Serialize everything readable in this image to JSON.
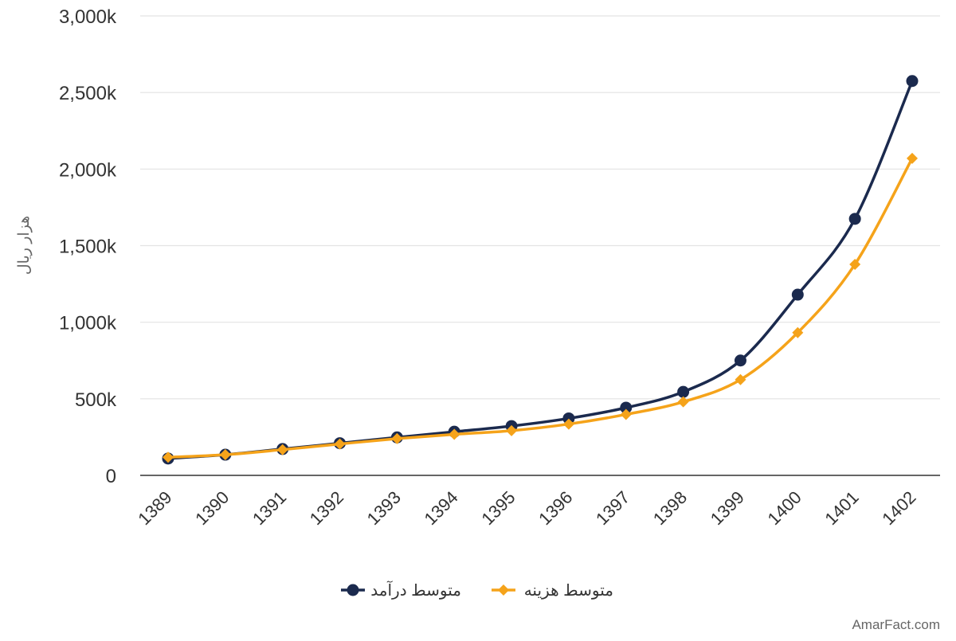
{
  "chart_data": {
    "type": "line",
    "title": "",
    "xlabel": "",
    "ylabel": "هزار ریال",
    "categories": [
      "1389",
      "1390",
      "1391",
      "1392",
      "1393",
      "1394",
      "1395",
      "1396",
      "1397",
      "1398",
      "1399",
      "1400",
      "1401",
      "1402"
    ],
    "ylim": [
      0,
      3000
    ],
    "y_ticks": [
      {
        "value": 0,
        "label": "0"
      },
      {
        "value": 500,
        "label": "500k"
      },
      {
        "value": 1000,
        "label": "1,000k"
      },
      {
        "value": 1500,
        "label": "1,500k"
      },
      {
        "value": 2000,
        "label": "2,000k"
      },
      {
        "value": 2500,
        "label": "2,500k"
      },
      {
        "value": 3000,
        "label": "3,000k"
      }
    ],
    "grid": true,
    "legend_position": "bottom",
    "series": [
      {
        "name": "متوسط درآمد",
        "color": "#1b2a4e",
        "marker": "circle",
        "values": [
          110,
          135,
          172,
          210,
          248,
          285,
          322,
          372,
          442,
          545,
          750,
          1180,
          1675,
          2575
        ]
      },
      {
        "name": "متوسط هزینه",
        "color": "#f5a31a",
        "marker": "diamond",
        "values": [
          118,
          135,
          168,
          205,
          240,
          268,
          292,
          335,
          398,
          480,
          625,
          932,
          1378,
          2070
        ]
      }
    ]
  },
  "watermark": "AmarFact.com"
}
